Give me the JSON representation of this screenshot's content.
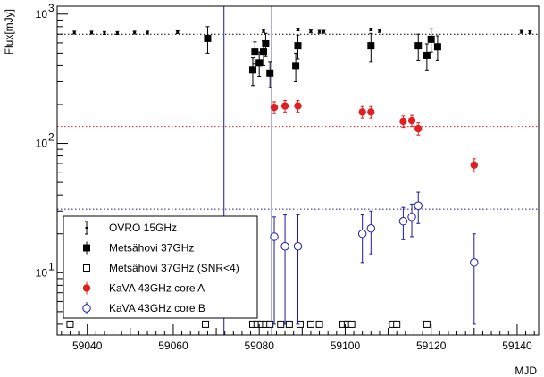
{
  "chart_data": {
    "type": "scatter",
    "title": "",
    "xlabel": "MJD",
    "ylabel": "Flux[mJy]",
    "xlim": [
      59033,
      59145
    ],
    "ylim": [
      3.3,
      1150
    ],
    "yscale": "log",
    "x_ticks": [
      59040,
      59060,
      59080,
      59100,
      59120,
      59140
    ],
    "x_tick_labels": [
      "59040",
      "59060",
      "59080",
      "59100",
      "59120",
      "59140"
    ],
    "y_ticks": [
      10,
      100,
      1000
    ],
    "y_tick_labels": [
      "10",
      "10",
      "10"
    ],
    "y_tick_exponents": [
      "1",
      "2",
      "3"
    ],
    "grid": false,
    "legend_position": "bottom-left",
    "vertical_lines": [
      {
        "x": 59071.8,
        "color": "#1a1aa6"
      },
      {
        "x": 59082.9,
        "color": "#1a1aa6"
      }
    ],
    "horizontal_lines": [
      {
        "y": 700,
        "color": "#000000",
        "style": "dotted"
      },
      {
        "y": 135,
        "color": "#e02020",
        "style": "dotted"
      },
      {
        "y": 31,
        "color": "#1a1aa6",
        "style": "dotted"
      }
    ],
    "series": [
      {
        "name": "OVRO 15GHz",
        "marker": "dot",
        "color": "#000000",
        "x": [
          59037,
          59041,
          59044,
          59047,
          59051,
          59054,
          59061,
          59081,
          59089,
          59092,
          59094,
          59095,
          59106,
          59108,
          59141,
          59143
        ],
        "y": [
          720,
          720,
          715,
          715,
          720,
          720,
          725,
          740,
          760,
          735,
          730,
          730,
          760,
          740,
          730,
          725
        ],
        "err": [
          18,
          18,
          18,
          18,
          18,
          18,
          18,
          18,
          18,
          18,
          18,
          18,
          18,
          18,
          18,
          18
        ]
      },
      {
        "name": "Metsähovi 37GHz",
        "marker": "filled-square",
        "color": "#000000",
        "x": [
          59068,
          59078.5,
          59079,
          59080,
          59081,
          59081.5,
          59082.5,
          59088.5,
          59089,
          59106,
          59117,
          59119,
          59120,
          59121.5
        ],
        "y": [
          650,
          370,
          510,
          420,
          510,
          590,
          350,
          400,
          570,
          570,
          570,
          480,
          640,
          560
        ],
        "err": [
          150,
          90,
          100,
          90,
          110,
          120,
          80,
          100,
          120,
          140,
          130,
          110,
          130,
          120
        ]
      },
      {
        "name": "Metsähovi 37GHz (SNR<4)",
        "marker": "open-square",
        "color": "#000000",
        "x": [
          59036,
          59067.5,
          59078.5,
          59079.5,
          59080.5,
          59081.5,
          59082.5,
          59085,
          59087,
          59089.5,
          59092,
          59094,
          59099.5,
          59100.5,
          59101.5,
          59111,
          59112,
          59119
        ],
        "y": [
          4,
          4,
          4,
          4,
          4,
          4,
          4,
          4,
          4,
          4,
          4,
          4,
          4,
          4,
          4,
          4,
          4,
          4
        ],
        "err": [
          0,
          0,
          0,
          0,
          0,
          0,
          0,
          0,
          0,
          0,
          0,
          0,
          0,
          0,
          0,
          0,
          0,
          0
        ]
      },
      {
        "name": "KaVA 43GHz core A",
        "marker": "filled-circle",
        "color": "#e02020",
        "x": [
          59083.5,
          59086,
          59089,
          59104,
          59106,
          59113.5,
          59115.5,
          59117,
          59130
        ],
        "y": [
          190,
          195,
          195,
          175,
          175,
          148,
          150,
          130,
          68
        ],
        "err": [
          20,
          20,
          20,
          18,
          18,
          15,
          15,
          14,
          8
        ]
      },
      {
        "name": "KaVA 43GHz core B",
        "marker": "open-circle",
        "color": "#1a1aa6",
        "x": [
          59083.5,
          59086,
          59089,
          59104,
          59106,
          59113.5,
          59115.5,
          59117,
          59130
        ],
        "y": [
          19,
          16,
          16,
          20,
          22,
          25,
          27,
          33,
          12
        ],
        "err_lo": [
          15,
          12,
          12,
          8,
          8,
          7,
          8,
          9,
          8
        ],
        "err_hi": [
          8,
          12,
          12,
          8,
          8,
          7,
          7,
          9,
          8
        ]
      }
    ]
  }
}
